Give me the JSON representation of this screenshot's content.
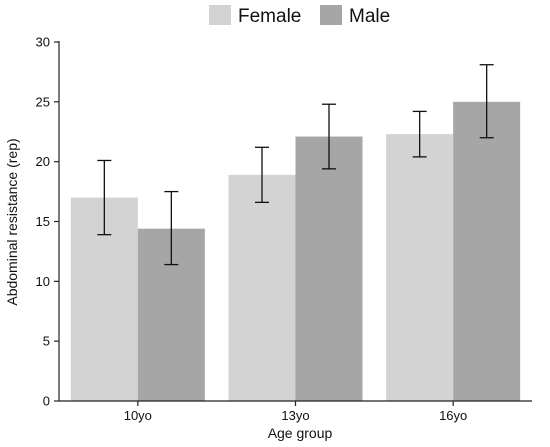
{
  "chart_data": {
    "type": "bar",
    "title": "",
    "xlabel": "Age group",
    "ylabel": "Abdominal resistance (rep)",
    "categories": [
      "10yo",
      "13yo",
      "16yo"
    ],
    "ylim": [
      0,
      30
    ],
    "yticks": [
      0,
      5,
      10,
      15,
      20,
      25,
      30
    ],
    "grid": false,
    "legend_position": "top",
    "series": [
      {
        "name": "Female",
        "color": "#d3d3d3",
        "values": [
          17.0,
          18.9,
          22.3
        ],
        "error_low": [
          13.9,
          16.6,
          20.4
        ],
        "error_high": [
          20.1,
          21.2,
          24.2
        ]
      },
      {
        "name": "Male",
        "color": "#a6a6a6",
        "values": [
          14.4,
          22.1,
          25.0
        ],
        "error_low": [
          11.4,
          19.4,
          22.0
        ],
        "error_high": [
          17.5,
          24.8,
          28.1
        ]
      }
    ]
  }
}
